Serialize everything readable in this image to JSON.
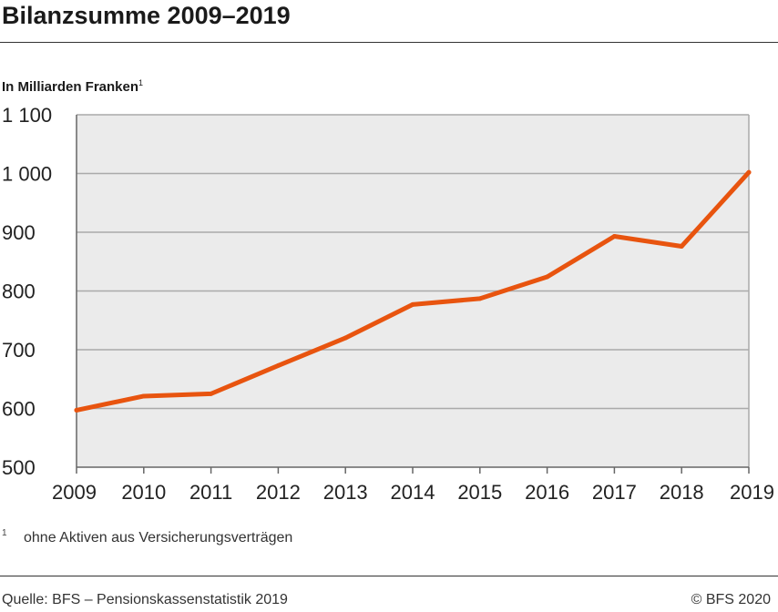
{
  "title": "Bilanzsumme 2009–2019",
  "unit_label": "In Milliarden Franken",
  "unit_footnote_marker": "1",
  "footnote": {
    "marker": "1",
    "text": "ohne Aktiven aus Versicherungsverträgen"
  },
  "source": "Quelle: BFS – Pensionskassenstatistik 2019",
  "copyright": "© BFS 2020",
  "colors": {
    "line": "#e8540f",
    "plot_bg": "#ebebeb",
    "grid": "#aaaaaa",
    "axis": "#666666"
  },
  "chart_data": {
    "type": "line",
    "x": [
      "2009",
      "2010",
      "2011",
      "2012",
      "2013",
      "2014",
      "2015",
      "2016",
      "2017",
      "2018",
      "2019"
    ],
    "series": [
      {
        "values": [
          597,
          621,
          625,
          673,
          720,
          777,
          787,
          824,
          893,
          876,
          1002
        ]
      }
    ],
    "ylim": [
      500,
      1100
    ],
    "yticks": [
      500,
      600,
      700,
      800,
      900,
      1000,
      1100
    ],
    "ytick_labels": [
      "500",
      "600",
      "700",
      "800",
      "900",
      "1 000",
      "1 100"
    ],
    "grid": true
  }
}
